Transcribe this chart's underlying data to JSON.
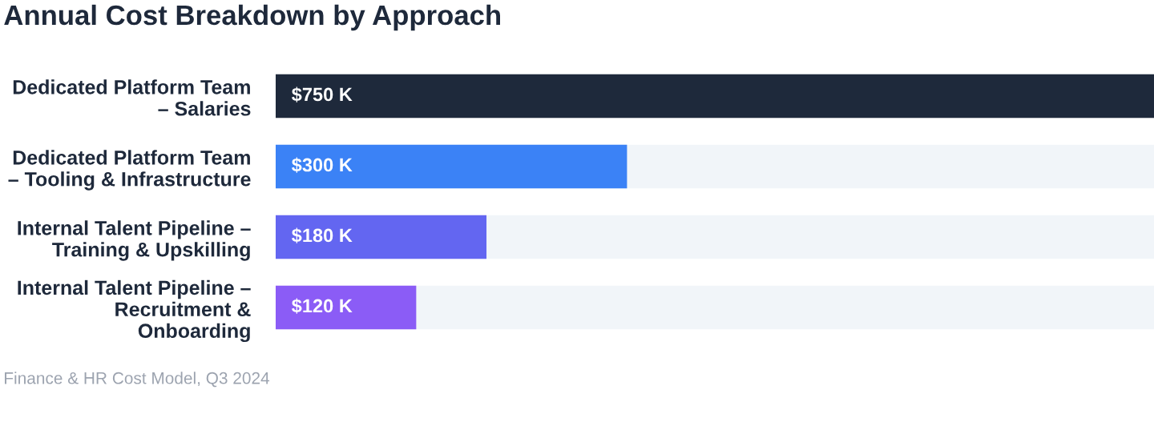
{
  "chart_data": {
    "type": "bar",
    "orientation": "horizontal",
    "title": "Annual Cost Breakdown by Approach",
    "categories": [
      "Dedicated Platform Team\n– Salaries",
      "Dedicated Platform Team\n– Tooling & Infrastructure",
      "Internal Talent Pipeline –\nTraining & Upskilling",
      "Internal Talent Pipeline –\nRecruitment &\nOnboarding"
    ],
    "values": [
      750,
      300,
      180,
      120
    ],
    "colors": [
      "#1e293b",
      "#3b82f6",
      "#6366f1",
      "#8b5cf6"
    ],
    "value_labels": [
      "$750 K",
      "$300 K",
      "$180 K",
      "$120 K"
    ],
    "annotations": [
      "Finance & HR Cost Model, Q3 2024"
    ],
    "grid": false,
    "legend": false
  }
}
